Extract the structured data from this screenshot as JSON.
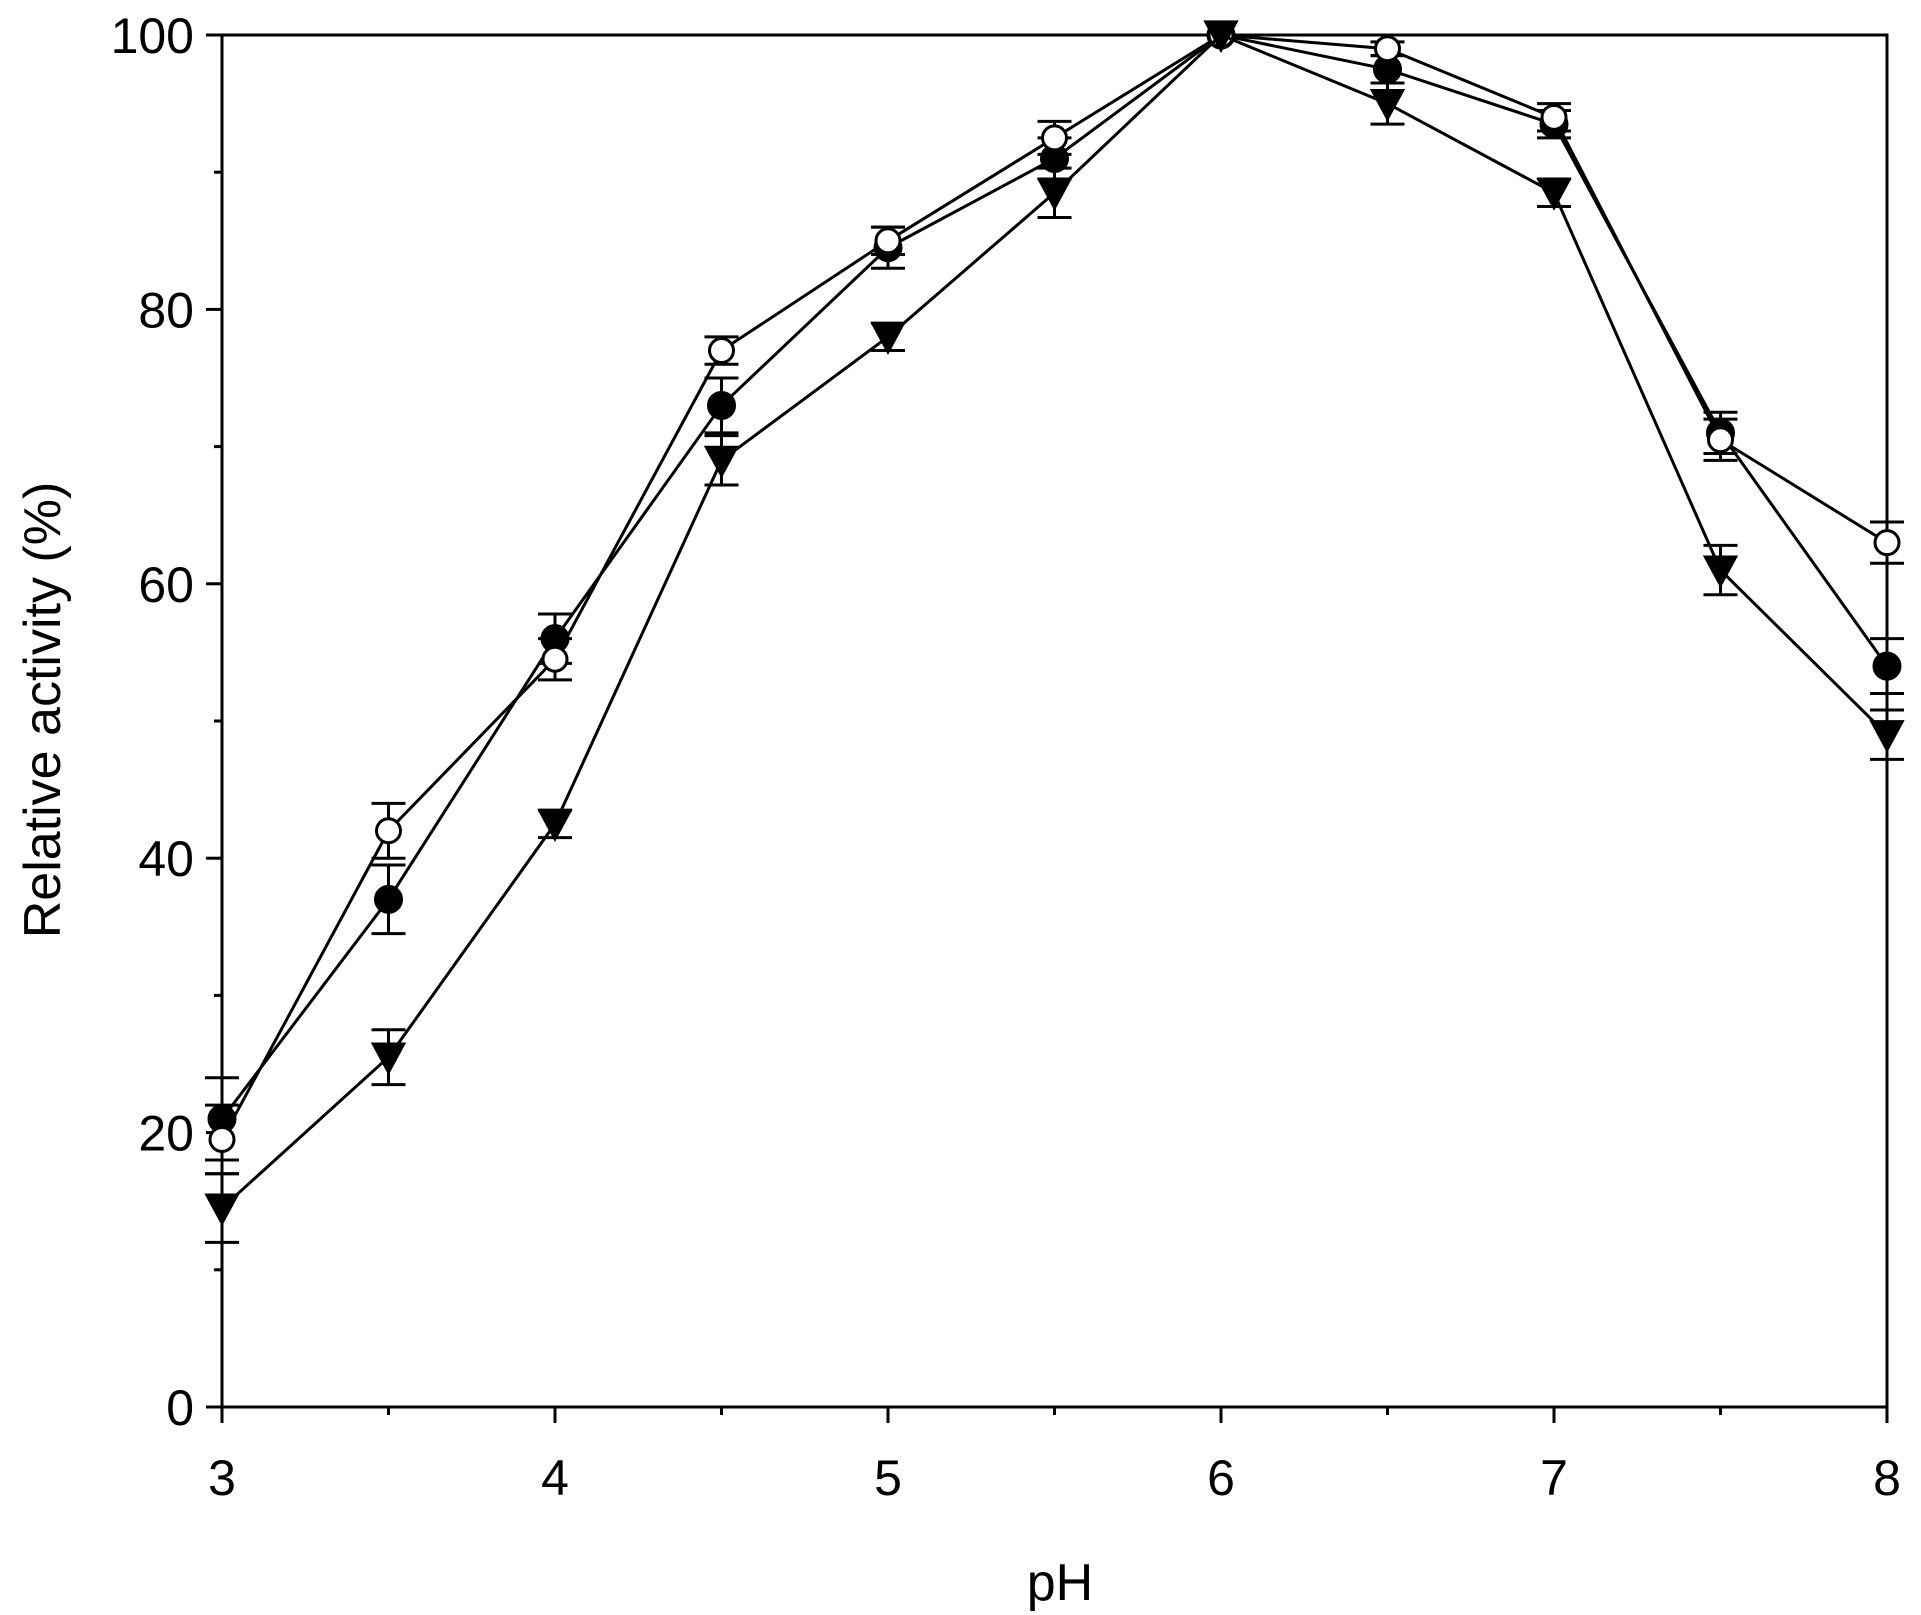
{
  "chart_data": {
    "type": "line",
    "title": "",
    "xlabel": "pH",
    "ylabel": "Relative activity (%)",
    "xlim": [
      3,
      8
    ],
    "ylim": [
      0,
      100
    ],
    "xticks": [
      3,
      4,
      5,
      6,
      7,
      8
    ],
    "yticks": [
      0,
      20,
      40,
      60,
      80,
      100
    ],
    "grid": false,
    "x": [
      3,
      3.5,
      4,
      4.5,
      5,
      5.5,
      6,
      6.5,
      7,
      7.5,
      8
    ],
    "series": [
      {
        "marker": "filled-circle",
        "values": [
          21,
          37,
          56,
          73,
          84.5,
          91,
          100,
          97.5,
          93.5,
          71,
          54
        ],
        "errors": [
          3,
          2.5,
          1.8,
          2,
          1.5,
          1.5,
          0,
          1,
          1,
          1.5,
          2
        ]
      },
      {
        "marker": "open-circle",
        "values": [
          19.5,
          42,
          54.5,
          77,
          85,
          92.5,
          100,
          99,
          94,
          70.5,
          63
        ],
        "errors": [
          2.5,
          2,
          1.5,
          1,
          1,
          1.2,
          0,
          0.5,
          1,
          1.5,
          1.5
        ]
      },
      {
        "marker": "filled-triangle-down",
        "values": [
          14.5,
          25.5,
          42.5,
          69,
          78,
          88.5,
          100,
          95,
          88.5,
          61,
          49
        ],
        "errors": [
          2.5,
          2,
          1,
          1.8,
          1,
          1.8,
          0,
          1.5,
          1,
          1.8,
          1.8
        ]
      }
    ]
  }
}
